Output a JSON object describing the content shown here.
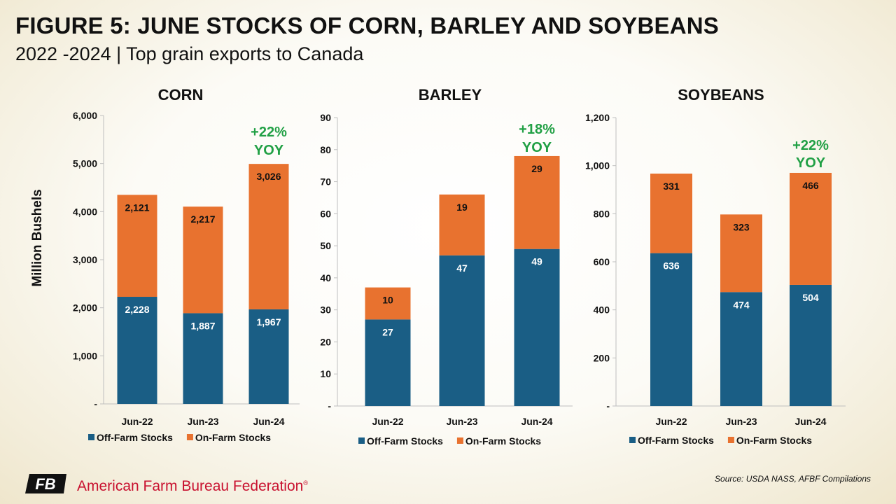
{
  "header": {
    "title": "FIGURE 5: JUNE STOCKS OF CORN, BARLEY AND SOYBEANS",
    "subtitle": "2022 -2024 | Top grain exports to Canada"
  },
  "footer": {
    "org_name": "American Farm Bureau Federation",
    "registered_mark": "®",
    "logo_text": "FB",
    "source": "Source: USDA NASS, AFBF Compilations"
  },
  "colors": {
    "off_farm": "#1a5e85",
    "on_farm": "#e8722f",
    "yoy": "#21a045",
    "axis": "#bfbfbf",
    "logo": "#111111"
  },
  "chart_data": [
    {
      "type": "bar",
      "stacked": true,
      "title": "CORN",
      "ylabel": "Million Bushels",
      "categories": [
        "Jun-22",
        "Jun-23",
        "Jun-24"
      ],
      "series": [
        {
          "name": "Off-Farm Stocks",
          "values": [
            2228,
            1887,
            1967
          ],
          "labels": [
            "2,228",
            "1,887",
            "1,967"
          ]
        },
        {
          "name": "On-Farm Stocks",
          "values": [
            2121,
            2217,
            3026
          ],
          "labels": [
            "2,121",
            "2,217",
            "3,026"
          ]
        }
      ],
      "ylim": [
        0,
        6000
      ],
      "yticks": [
        0,
        1000,
        2000,
        3000,
        4000,
        5000,
        6000
      ],
      "ytick_labels": [
        "-",
        "1,000",
        "2,000",
        "3,000",
        "4,000",
        "5,000",
        "6,000"
      ],
      "annotation": {
        "lines": [
          "+22%",
          "YOY"
        ],
        "category": "Jun-24"
      },
      "legend": "bottom"
    },
    {
      "type": "bar",
      "stacked": true,
      "title": "BARLEY",
      "ylabel": "",
      "categories": [
        "Jun-22",
        "Jun-23",
        "Jun-24"
      ],
      "series": [
        {
          "name": "Off-Farm Stocks",
          "values": [
            27,
            47,
            49
          ],
          "labels": [
            "27",
            "47",
            "49"
          ]
        },
        {
          "name": "On-Farm Stocks",
          "values": [
            10,
            19,
            29
          ],
          "labels": [
            "10",
            "19",
            "29"
          ]
        }
      ],
      "ylim": [
        0,
        90
      ],
      "yticks": [
        0,
        10,
        20,
        30,
        40,
        50,
        60,
        70,
        80,
        90
      ],
      "ytick_labels": [
        "-",
        "10",
        "20",
        "30",
        "40",
        "50",
        "60",
        "70",
        "80",
        "90"
      ],
      "annotation": {
        "lines": [
          "+18%",
          "YOY"
        ],
        "category": "Jun-24"
      },
      "legend": "bottom"
    },
    {
      "type": "bar",
      "stacked": true,
      "title": "SOYBEANS",
      "ylabel": "",
      "categories": [
        "Jun-22",
        "Jun-23",
        "Jun-24"
      ],
      "series": [
        {
          "name": "Off-Farm Stocks",
          "values": [
            636,
            474,
            504
          ],
          "labels": [
            "636",
            "474",
            "504"
          ]
        },
        {
          "name": "On-Farm Stocks",
          "values": [
            331,
            323,
            466
          ],
          "labels": [
            "331",
            "323",
            "466"
          ]
        }
      ],
      "ylim": [
        0,
        1200
      ],
      "yticks": [
        0,
        200,
        400,
        600,
        800,
        1000,
        1200
      ],
      "ytick_labels": [
        "-",
        "200",
        "400",
        "600",
        "800",
        "1,000",
        "1,200"
      ],
      "annotation": {
        "lines": [
          "+22%",
          "YOY"
        ],
        "category": "Jun-24"
      },
      "legend": "bottom"
    }
  ]
}
